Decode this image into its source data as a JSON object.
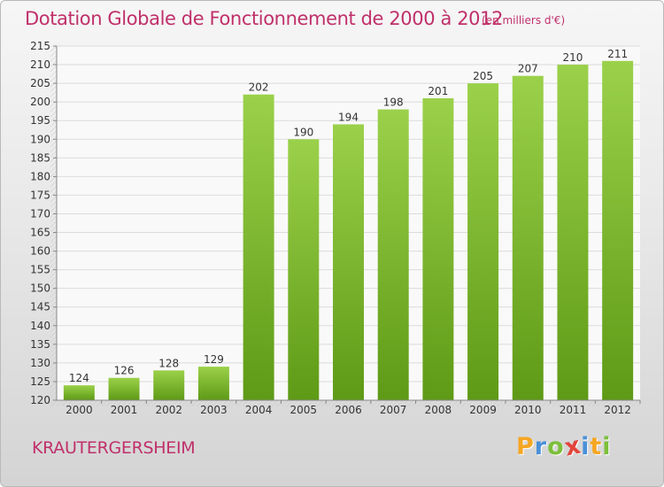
{
  "title": "Dotation Globale de Fonctionnement de 2000 à 2012",
  "unit_note": "(en milliers d'€)",
  "commune": "KRAUTERGERSHEIM",
  "brand": {
    "letters": [
      {
        "char": "P",
        "color": "#f5a623"
      },
      {
        "char": "r",
        "color": "#4a90d9"
      },
      {
        "char": "o",
        "color": "#7cbf3a"
      },
      {
        "char": "x",
        "color": "#e2453c"
      },
      {
        "char": "i",
        "color": "#4a90d9"
      },
      {
        "char": "t",
        "color": "#f5a623"
      },
      {
        "char": "i",
        "color": "#7cbf3a"
      }
    ]
  },
  "chart_data": {
    "type": "bar",
    "title": "Dotation Globale de Fonctionnement de 2000 à 2012",
    "categories": [
      "2000",
      "2001",
      "2002",
      "2003",
      "2004",
      "2005",
      "2006",
      "2007",
      "2008",
      "2009",
      "2010",
      "2011",
      "2012"
    ],
    "values": [
      124,
      126,
      128,
      129,
      202,
      190,
      194,
      198,
      201,
      205,
      207,
      210,
      211
    ],
    "ylim": [
      120,
      215
    ],
    "yticks": [
      120,
      125,
      130,
      135,
      140,
      145,
      150,
      155,
      160,
      165,
      170,
      175,
      180,
      185,
      190,
      195,
      200,
      205,
      210,
      215
    ],
    "grid": true,
    "bar_color_light": "#9bd14a",
    "bar_color_dark": "#5e9a16"
  }
}
